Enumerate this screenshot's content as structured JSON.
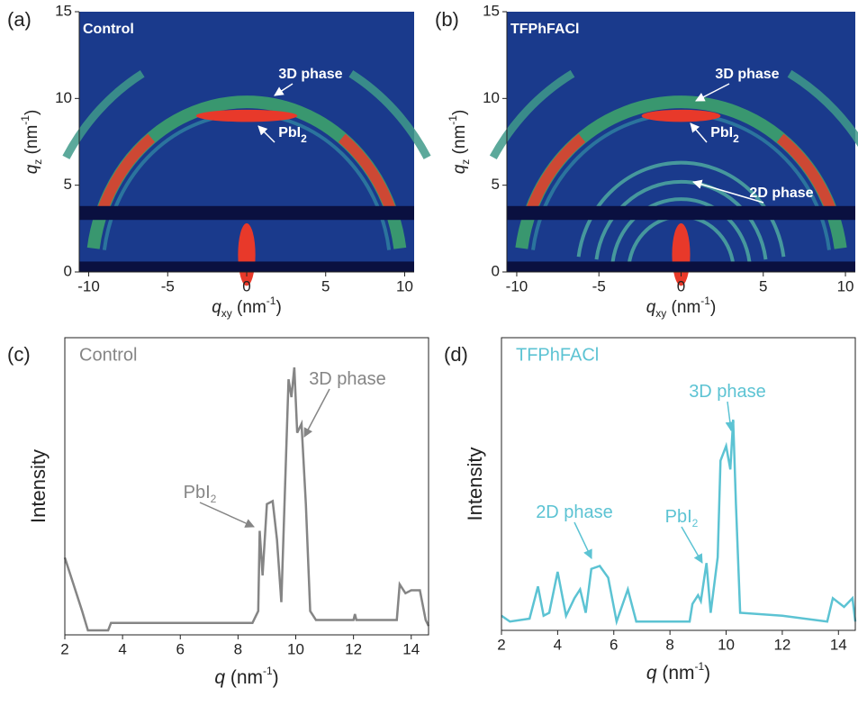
{
  "chart_data": [
    {
      "type": "image",
      "panel": "(a)",
      "label": "Control",
      "xlim": [
        -10.6,
        10.6
      ],
      "ylim": [
        0,
        15
      ],
      "xticks": [
        -10,
        -5,
        0,
        5,
        10
      ],
      "yticks": [
        0,
        5,
        10,
        15
      ],
      "xlabel": [
        "q",
        "xy",
        " (nm",
        "-1",
        ")"
      ],
      "ylabel": [
        "q",
        "z",
        " (nm",
        "-1",
        ")"
      ],
      "annotations": [
        [
          "3D phase"
        ],
        [
          "PbI",
          "2"
        ]
      ]
    },
    {
      "type": "image",
      "panel": "(b)",
      "label": "TFPhFACl",
      "xlim": [
        -10.6,
        10.6
      ],
      "ylim": [
        0,
        15
      ],
      "xticks": [
        -10,
        -5,
        0,
        5,
        10
      ],
      "yticks": [
        0,
        5,
        10,
        15
      ],
      "xlabel": [
        "q",
        "xy",
        " (nm",
        "-1",
        ")"
      ],
      "ylabel": [
        "q",
        "z",
        " (nm",
        "-1",
        ")"
      ],
      "annotations": [
        [
          "3D phase"
        ],
        [
          "PbI",
          "2"
        ],
        [
          "2D phase"
        ]
      ]
    },
    {
      "type": "line",
      "panel": "(c)",
      "label": "Control",
      "color": "#858585",
      "xlim": [
        2,
        14.6
      ],
      "ylim": [
        0,
        1
      ],
      "xticks": [
        2,
        4,
        6,
        8,
        10,
        12,
        14
      ],
      "xlabel": [
        "q",
        " (nm",
        "-1",
        ")"
      ],
      "ylabel": "Intensity",
      "annotations": [
        [
          "PbI",
          "2"
        ],
        [
          "3D phase"
        ]
      ],
      "x": [
        2,
        2.3,
        2.6,
        2.8,
        3.5,
        3.6,
        8.5,
        8.7,
        8.75,
        8.85,
        9.0,
        9.2,
        9.35,
        9.5,
        9.65,
        9.75,
        9.85,
        9.95,
        10.05,
        10.2,
        10.35,
        10.5,
        10.7,
        12,
        12.05,
        12.1,
        13.5,
        13.6,
        13.8,
        14,
        14.3,
        14.5,
        14.6
      ],
      "values": [
        0.26,
        0.17,
        0.08,
        0.015,
        0.015,
        0.04,
        0.04,
        0.08,
        0.35,
        0.2,
        0.44,
        0.45,
        0.32,
        0.11,
        0.56,
        0.86,
        0.8,
        0.9,
        0.68,
        0.71,
        0.44,
        0.08,
        0.05,
        0.05,
        0.07,
        0.05,
        0.05,
        0.17,
        0.14,
        0.15,
        0.15,
        0.05,
        0.03
      ]
    },
    {
      "type": "line",
      "panel": "(d)",
      "label": "TFPhFACl",
      "color": "#5cc3d3",
      "xlim": [
        2,
        14.6
      ],
      "ylim": [
        0,
        1
      ],
      "xticks": [
        2,
        4,
        6,
        8,
        10,
        12,
        14
      ],
      "xlabel": [
        "q",
        " (nm",
        "-1",
        ")"
      ],
      "ylabel": "Intensity",
      "annotations": [
        [
          "3D phase"
        ],
        [
          "PbI",
          "2"
        ],
        [
          "2D phase"
        ]
      ],
      "x": [
        2,
        2.3,
        3.0,
        3.3,
        3.5,
        3.7,
        4.0,
        4.3,
        4.6,
        4.8,
        5.0,
        5.2,
        5.5,
        5.8,
        6.1,
        6.5,
        6.8,
        8.7,
        8.8,
        9.0,
        9.1,
        9.3,
        9.45,
        9.7,
        9.8,
        10.0,
        10.15,
        10.25,
        10.35,
        10.5,
        12,
        13.6,
        13.8,
        14.2,
        14.5,
        14.6
      ],
      "values": [
        0.05,
        0.03,
        0.04,
        0.15,
        0.05,
        0.06,
        0.2,
        0.05,
        0.11,
        0.14,
        0.06,
        0.21,
        0.22,
        0.18,
        0.03,
        0.14,
        0.03,
        0.03,
        0.09,
        0.12,
        0.1,
        0.23,
        0.06,
        0.25,
        0.58,
        0.63,
        0.55,
        0.72,
        0.43,
        0.06,
        0.05,
        0.03,
        0.11,
        0.08,
        0.11,
        0.03
      ]
    }
  ]
}
